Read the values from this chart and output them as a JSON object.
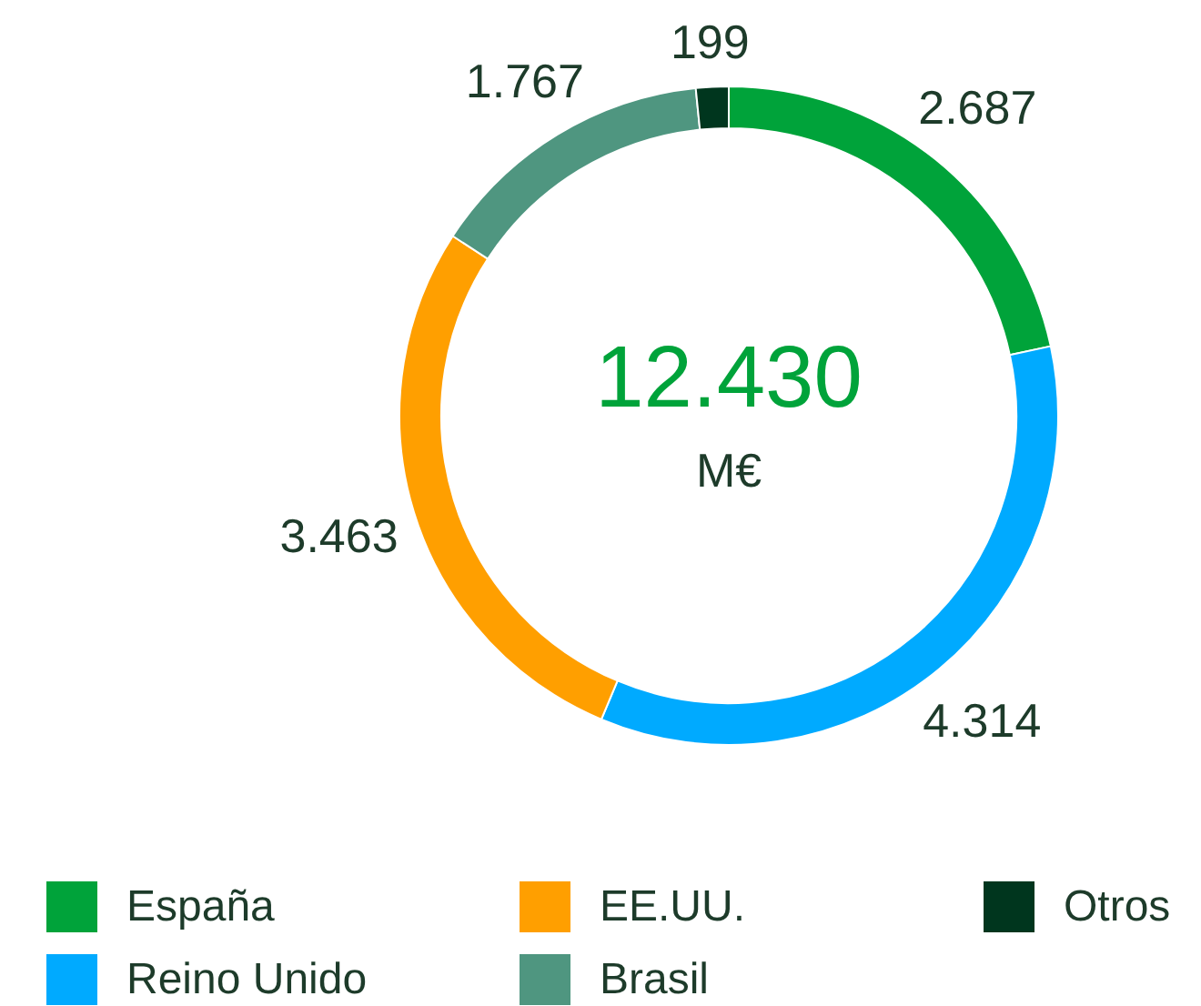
{
  "chart_data": {
    "type": "donut",
    "categories": [
      "España",
      "Reino Unido",
      "EE.UU.",
      "Brasil",
      "Otros"
    ],
    "values": [
      2687,
      4314,
      3463,
      1767,
      199
    ],
    "value_labels": [
      "2.687",
      "4.314",
      "3.463",
      "1.767",
      "199"
    ],
    "colors": [
      "#00a33a",
      "#00aaff",
      "#ff9f00",
      "#4f9680",
      "#00361e"
    ],
    "annotations": [
      "12.430",
      "M€"
    ],
    "legend": "bottom"
  }
}
